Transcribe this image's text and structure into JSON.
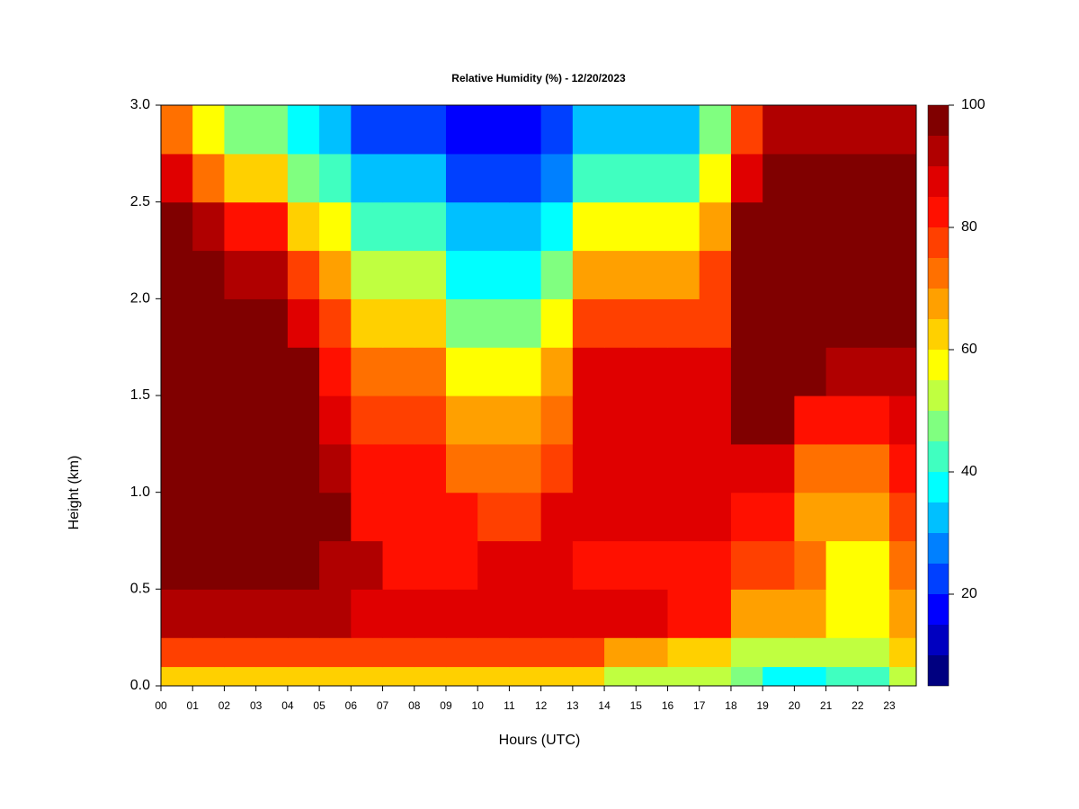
{
  "chart_data": {
    "type": "heatmap",
    "title": "Relative Humidity (%) - 12/20/2023",
    "xlabel": "Hours (UTC)",
    "ylabel": "Height (km)",
    "xlim": [
      0,
      23.85
    ],
    "ylim": [
      0,
      3
    ],
    "xticks": [
      {
        "value": 0,
        "label": "00"
      },
      {
        "value": 1,
        "label": "01"
      },
      {
        "value": 2,
        "label": "02"
      },
      {
        "value": 3,
        "label": "03"
      },
      {
        "value": 4,
        "label": "04"
      },
      {
        "value": 5,
        "label": "05"
      },
      {
        "value": 6,
        "label": "06"
      },
      {
        "value": 7,
        "label": "07"
      },
      {
        "value": 8,
        "label": "08"
      },
      {
        "value": 9,
        "label": "09"
      },
      {
        "value": 10,
        "label": "10"
      },
      {
        "value": 11,
        "label": "11"
      },
      {
        "value": 12,
        "label": "12"
      },
      {
        "value": 13,
        "label": "13"
      },
      {
        "value": 14,
        "label": "14"
      },
      {
        "value": 15,
        "label": "15"
      },
      {
        "value": 16,
        "label": "16"
      },
      {
        "value": 17,
        "label": "17"
      },
      {
        "value": 18,
        "label": "18"
      },
      {
        "value": 19,
        "label": "19"
      },
      {
        "value": 20,
        "label": "20"
      },
      {
        "value": 21,
        "label": "21"
      },
      {
        "value": 22,
        "label": "22"
      },
      {
        "value": 23,
        "label": "23"
      }
    ],
    "yticks": [
      {
        "value": 0,
        "label": "0.0"
      },
      {
        "value": 0.5,
        "label": "0.5"
      },
      {
        "value": 1,
        "label": "1.0"
      },
      {
        "value": 1.5,
        "label": "1.5"
      },
      {
        "value": 2,
        "label": "2.0"
      },
      {
        "value": 2.5,
        "label": "2.5"
      },
      {
        "value": 3,
        "label": "3.0"
      }
    ],
    "x_bins": [
      0,
      1,
      2,
      3,
      4,
      5,
      6,
      7,
      8,
      9,
      10,
      11,
      12,
      13,
      14,
      15,
      16,
      17,
      18,
      19,
      20,
      21,
      22,
      23,
      23.85
    ],
    "y_bins": [
      0,
      0.1,
      0.25,
      0.5,
      0.75,
      1,
      1.25,
      1.5,
      1.75,
      2,
      2.25,
      2.5,
      2.75,
      3
    ],
    "z": [
      [
        60,
        60,
        60,
        60,
        60,
        60,
        60,
        60,
        60,
        60,
        60,
        60,
        60,
        60,
        50,
        50,
        50,
        50,
        45,
        35,
        35,
        40,
        40,
        50
      ],
      [
        75,
        75,
        75,
        75,
        75,
        75,
        75,
        75,
        75,
        75,
        75,
        75,
        75,
        75,
        68,
        68,
        60,
        60,
        50,
        50,
        50,
        50,
        50,
        60
      ],
      [
        92,
        92,
        92,
        92,
        92,
        92,
        85,
        85,
        85,
        85,
        85,
        85,
        85,
        85,
        85,
        85,
        80,
        80,
        68,
        68,
        68,
        55,
        55,
        65
      ],
      [
        98,
        98,
        98,
        98,
        98,
        90,
        90,
        82,
        82,
        82,
        85,
        85,
        85,
        82,
        82,
        82,
        82,
        82,
        78,
        78,
        70,
        58,
        58,
        70
      ],
      [
        100,
        100,
        100,
        100,
        100,
        95,
        82,
        82,
        82,
        82,
        78,
        78,
        85,
        85,
        85,
        85,
        85,
        85,
        82,
        82,
        65,
        65,
        65,
        75
      ],
      [
        100,
        100,
        100,
        100,
        100,
        90,
        80,
        80,
        80,
        72,
        72,
        72,
        75,
        85,
        85,
        85,
        85,
        85,
        88,
        88,
        70,
        70,
        70,
        80
      ],
      [
        100,
        100,
        100,
        100,
        100,
        88,
        78,
        78,
        78,
        68,
        68,
        68,
        72,
        85,
        85,
        85,
        85,
        85,
        98,
        98,
        82,
        82,
        82,
        85
      ],
      [
        100,
        100,
        100,
        100,
        95,
        82,
        70,
        70,
        70,
        58,
        58,
        58,
        65,
        85,
        85,
        85,
        85,
        85,
        100,
        100,
        100,
        92,
        92,
        92
      ],
      [
        100,
        100,
        100,
        100,
        88,
        75,
        62,
        62,
        62,
        48,
        48,
        48,
        58,
        78,
        78,
        78,
        78,
        78,
        100,
        100,
        100,
        100,
        100,
        100
      ],
      [
        100,
        100,
        90,
        90,
        75,
        65,
        52,
        52,
        52,
        38,
        38,
        38,
        45,
        65,
        65,
        65,
        65,
        75,
        100,
        100,
        100,
        100,
        100,
        100
      ],
      [
        98,
        90,
        80,
        80,
        62,
        55,
        40,
        40,
        40,
        30,
        30,
        30,
        38,
        55,
        55,
        55,
        55,
        68,
        98,
        98,
        98,
        98,
        98,
        98
      ],
      [
        85,
        72,
        60,
        60,
        48,
        40,
        30,
        30,
        30,
        20,
        20,
        20,
        28,
        40,
        40,
        40,
        40,
        55,
        85,
        95,
        95,
        95,
        95,
        95
      ],
      [
        70,
        55,
        45,
        45,
        35,
        30,
        22,
        22,
        22,
        15,
        15,
        15,
        22,
        32,
        32,
        32,
        32,
        45,
        75,
        90,
        90,
        90,
        90,
        90
      ]
    ],
    "levels": [
      5,
      10,
      15,
      20,
      25,
      30,
      35,
      40,
      45,
      50,
      55,
      60,
      65,
      70,
      75,
      80,
      85,
      90,
      95,
      100
    ],
    "colors": [
      "#000080",
      "#0000c0",
      "#0000ff",
      "#0040ff",
      "#0080ff",
      "#00c0ff",
      "#00ffff",
      "#40ffc0",
      "#80ff80",
      "#c0ff40",
      "#ffff00",
      "#ffd000",
      "#ffa000",
      "#ff7000",
      "#ff4000",
      "#ff1000",
      "#e00000",
      "#b00000",
      "#800000"
    ],
    "cbar_ticks": [
      20,
      40,
      60,
      80,
      100
    ]
  }
}
